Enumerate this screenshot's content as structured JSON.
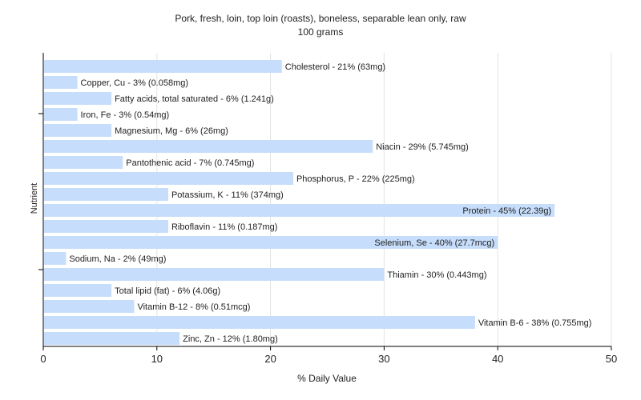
{
  "chart_data": {
    "type": "bar",
    "orientation": "horizontal",
    "title": "Pork, fresh, loin, top loin (roasts), boneless, separable lean only, raw",
    "subtitle": "100 grams",
    "xlabel": "% Daily Value",
    "ylabel": "Nutrient",
    "xlim": [
      0,
      50
    ],
    "xticks": [
      0,
      10,
      20,
      30,
      40,
      50
    ],
    "grid": true,
    "bar_color": "#c6ddfb",
    "categories": [
      "Cholesterol",
      "Copper, Cu",
      "Fatty acids, total saturated",
      "Iron, Fe",
      "Magnesium, Mg",
      "Niacin",
      "Pantothenic acid",
      "Phosphorus, P",
      "Potassium, K",
      "Protein",
      "Riboflavin",
      "Selenium, Se",
      "Sodium, Na",
      "Thiamin",
      "Total lipid (fat)",
      "Vitamin B-12",
      "Vitamin B-6",
      "Zinc, Zn"
    ],
    "values": [
      21,
      3,
      6,
      3,
      6,
      29,
      7,
      22,
      11,
      45,
      11,
      40,
      2,
      30,
      6,
      8,
      38,
      12
    ],
    "labels": [
      "Cholesterol - 21% (63mg)",
      "Copper, Cu - 3% (0.058mg)",
      "Fatty acids, total saturated - 6% (1.241g)",
      "Iron, Fe - 3% (0.54mg)",
      "Magnesium, Mg - 6% (26mg)",
      "Niacin - 29% (5.745mg)",
      "Pantothenic acid - 7% (0.745mg)",
      "Phosphorus, P - 22% (225mg)",
      "Potassium, K - 11% (374mg)",
      "Protein - 45% (22.39g)",
      "Riboflavin - 11% (0.187mg)",
      "Selenium, Se - 40% (27.7mcg)",
      "Sodium, Na - 2% (49mg)",
      "Thiamin - 30% (0.443mg)",
      "Total lipid (fat) - 6% (4.06g)",
      "Vitamin B-12 - 8% (0.51mcg)",
      "Vitamin B-6 - 38% (0.755mg)",
      "Zinc, Zn - 12% (1.80mg)"
    ]
  }
}
